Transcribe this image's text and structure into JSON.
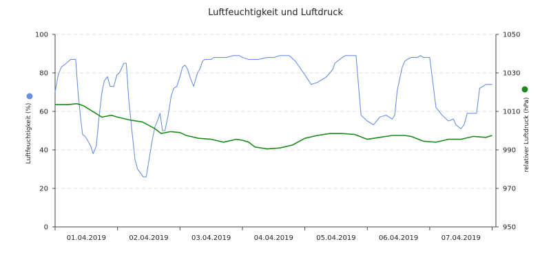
{
  "chart_data": {
    "type": "line",
    "title": "Luftfeuchtigkeit und Luftdruck",
    "y_left": {
      "label": "Luftfeuchtigkeit (%)",
      "range": [
        0,
        100
      ],
      "ticks": [
        "0",
        "20",
        "40",
        "60",
        "80",
        "100"
      ],
      "tick_values": [
        0,
        20,
        40,
        60,
        80,
        100
      ]
    },
    "y_right": {
      "label": "relativer Luftdruck (hPa)",
      "range": [
        950,
        1050
      ],
      "ticks": [
        "950",
        "970",
        "990",
        "1010",
        "1030",
        "1050"
      ],
      "tick_values": [
        950,
        970,
        990,
        1010,
        1030,
        1050
      ]
    },
    "x_axis": {
      "range_days": [
        0,
        7.06
      ],
      "ticks": [
        "01.04.2019",
        "02.04.2019",
        "03.04.2019",
        "04.04.2019",
        "05.04.2019",
        "06.04.2019",
        "07.04.2019"
      ]
    },
    "grid": "horizontal dashed",
    "colors": {
      "humidity": "#6b8fe0",
      "pressure": "#1a8a1a"
    },
    "series": [
      {
        "axis": "left",
        "color": "#6b8fe0",
        "x": [
          0.0,
          0.05,
          0.1,
          0.18,
          0.25,
          0.33,
          0.37,
          0.41,
          0.44,
          0.48,
          0.52,
          0.57,
          0.61,
          0.66,
          0.7,
          0.75,
          0.79,
          0.84,
          0.88,
          0.94,
          0.99,
          1.03,
          1.06,
          1.1,
          1.14,
          1.18,
          1.23,
          1.28,
          1.32,
          1.37,
          1.41,
          1.46,
          1.5,
          1.55,
          1.6,
          1.65,
          1.68,
          1.72,
          1.76,
          1.81,
          1.86,
          1.9,
          1.95,
          2.0,
          2.04,
          2.08,
          2.12,
          2.17,
          2.22,
          2.28,
          2.32,
          2.36,
          2.4,
          2.45,
          2.5,
          2.54,
          2.58,
          2.62,
          2.68,
          2.75,
          2.85,
          2.95,
          3.0,
          3.1,
          3.25,
          3.4,
          3.5,
          3.6,
          3.7,
          3.75,
          3.85,
          4.0,
          4.1,
          4.2,
          4.35,
          4.45,
          4.48,
          4.52,
          4.56,
          4.6,
          4.65,
          4.7,
          4.75,
          4.82,
          4.9,
          5.0,
          5.1,
          5.2,
          5.3,
          5.4,
          5.44,
          5.48,
          5.52,
          5.56,
          5.6,
          5.64,
          5.7,
          5.75,
          5.8,
          5.85,
          5.9,
          6.0,
          6.1,
          6.2,
          6.3,
          6.38,
          6.42,
          6.46,
          6.5,
          6.55,
          6.6,
          6.65,
          6.7,
          6.75,
          6.8,
          6.85,
          6.9,
          6.95,
          7.0
        ],
        "values": [
          70,
          79,
          83,
          85,
          87,
          87,
          69,
          56,
          48,
          47,
          45,
          42,
          38,
          42,
          56,
          70,
          76,
          78,
          73,
          73,
          79,
          80,
          82,
          85,
          85,
          66,
          50,
          35,
          30,
          28,
          26,
          26,
          34,
          44,
          52,
          56,
          59,
          50,
          50,
          58,
          68,
          72,
          73,
          78,
          83,
          84,
          82,
          77,
          73,
          80,
          82,
          86,
          87,
          87,
          87,
          88,
          88,
          88,
          88,
          88,
          89,
          89,
          88,
          87,
          87,
          88,
          88,
          89,
          89,
          89,
          86,
          79,
          74,
          75,
          78,
          82,
          85,
          86,
          87,
          88,
          89,
          89,
          89,
          89,
          58,
          55,
          53,
          57,
          58,
          56,
          58,
          71,
          77,
          83,
          86,
          87,
          88,
          88,
          88,
          89,
          88,
          88,
          62,
          58,
          55,
          56,
          53,
          52,
          51,
          53,
          59,
          59,
          59,
          59,
          72,
          73,
          74,
          74,
          74
        ]
      },
      {
        "axis": "right",
        "color": "#1a8a1a",
        "x": [
          0.0,
          0.2,
          0.35,
          0.45,
          0.55,
          0.65,
          0.75,
          0.9,
          1.0,
          1.2,
          1.4,
          1.6,
          1.7,
          1.85,
          2.0,
          2.1,
          2.3,
          2.5,
          2.7,
          2.9,
          3.0,
          3.1,
          3.2,
          3.4,
          3.6,
          3.8,
          4.0,
          4.2,
          4.4,
          4.6,
          4.8,
          5.0,
          5.2,
          5.4,
          5.6,
          5.7,
          5.9,
          6.1,
          6.3,
          6.5,
          6.7,
          6.9,
          7.0
        ],
        "values": [
          1013.5,
          1013.5,
          1014,
          1013,
          1011,
          1009,
          1007,
          1008,
          1007,
          1005.5,
          1004.5,
          1001,
          998.5,
          999.5,
          999,
          997.5,
          996,
          995.5,
          994,
          995.5,
          995,
          994,
          991.5,
          990.5,
          991,
          992.5,
          996,
          997.5,
          998.5,
          998.5,
          998,
          995.5,
          996.5,
          997.5,
          997.5,
          997,
          994.5,
          994,
          995.5,
          995.5,
          997,
          996.5,
          997.5
        ]
      }
    ]
  }
}
